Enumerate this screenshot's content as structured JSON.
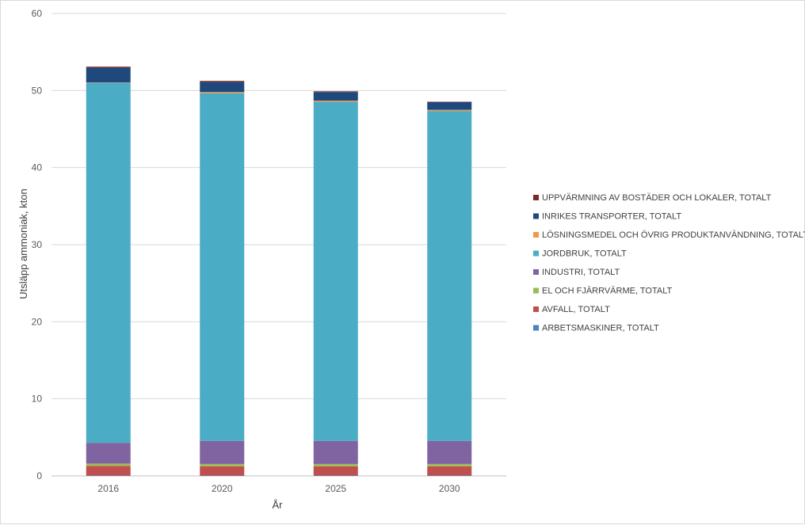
{
  "chart_data": {
    "type": "bar",
    "stacked": true,
    "title": "",
    "xlabel": "År",
    "ylabel": "Utsläpp ammoniak, kton",
    "ylim": [
      0,
      60
    ],
    "yticks": [
      0,
      10,
      20,
      30,
      40,
      50,
      60
    ],
    "grid": true,
    "legend_position": "right",
    "categories": [
      "2016",
      "2020",
      "2025",
      "2030"
    ],
    "series": [
      {
        "name": "ARBETSMASKINER, TOTALT",
        "color": "#4f81bd",
        "values": [
          0.05,
          0.05,
          0.05,
          0.05
        ]
      },
      {
        "name": "AVFALL, TOTALT",
        "color": "#c0504d",
        "values": [
          1.25,
          1.2,
          1.2,
          1.2
        ]
      },
      {
        "name": "EL OCH FJÄRRVÄRME, TOTALT",
        "color": "#9bbb59",
        "values": [
          0.3,
          0.3,
          0.3,
          0.3
        ]
      },
      {
        "name": "INDUSTRI, TOTALT",
        "color": "#8064a2",
        "values": [
          2.7,
          3.0,
          3.0,
          3.0
        ]
      },
      {
        "name": "JORDBRUK, TOTALT",
        "color": "#4bacc6",
        "values": [
          46.7,
          45.1,
          44.0,
          42.8
        ]
      },
      {
        "name": "LÖSNINGSMEDEL OCH ÖVRIG PRODUKTANVÄNDNING, TOTALT",
        "color": "#f79646",
        "values": [
          0.05,
          0.15,
          0.15,
          0.15
        ]
      },
      {
        "name": "INRIKES TRANSPORTER, TOTALT",
        "color": "#1f497d",
        "values": [
          1.9,
          1.3,
          1.1,
          1.0
        ]
      },
      {
        "name": "UPPVÄRMNING AV BOSTÄDER OCH LOKALER, TOTALT",
        "color": "#772c2a",
        "values": [
          0.15,
          0.15,
          0.1,
          0.05
        ]
      }
    ],
    "legend_order": [
      "UPPVÄRMNING AV BOSTÄDER OCH LOKALER, TOTALT",
      "INRIKES TRANSPORTER, TOTALT",
      "LÖSNINGSMEDEL OCH ÖVRIG PRODUKTANVÄNDNING, TOTALT",
      "JORDBRUK, TOTALT",
      "INDUSTRI, TOTALT",
      "EL OCH FJÄRRVÄRME, TOTALT",
      "AVFALL, TOTALT",
      "ARBETSMASKINER, TOTALT"
    ]
  }
}
